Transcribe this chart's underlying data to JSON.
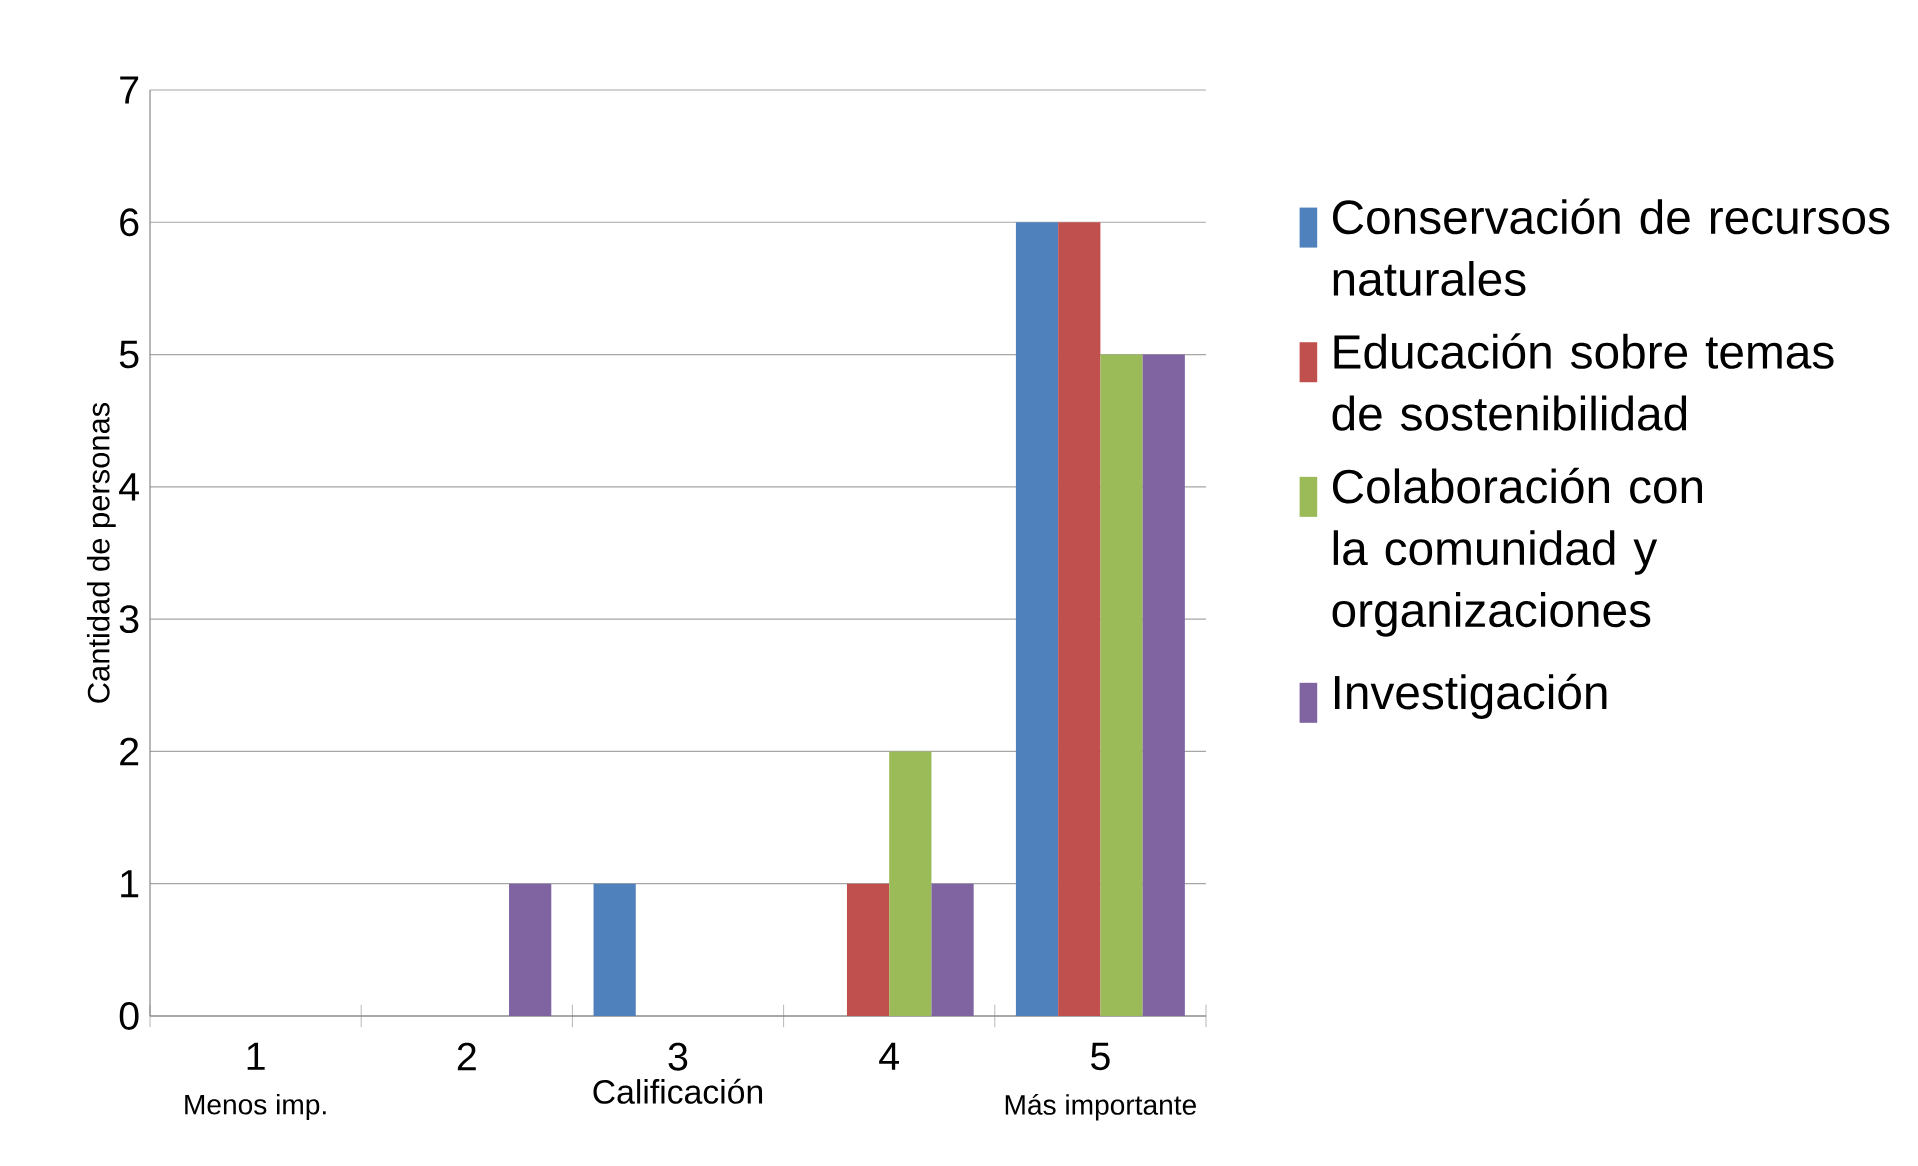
{
  "chart_data": {
    "type": "bar",
    "xlabel": "Calificación",
    "ylabel": "Cantidad de personas",
    "categories": [
      "1",
      "2",
      "3",
      "4",
      "5"
    ],
    "series": [
      {
        "name": "Conservación de recursos naturales",
        "color": "#4f81bd",
        "values": [
          0,
          0,
          1,
          0,
          6
        ]
      },
      {
        "name": "Educación sobre temas de sostenibilidad",
        "color": "#c0504d",
        "values": [
          0,
          0,
          0,
          1,
          6
        ]
      },
      {
        "name": "Colaboración con la comunidad y organizaciones",
        "color": "#9bbb59",
        "values": [
          0,
          0,
          0,
          2,
          5
        ]
      },
      {
        "name": "Investigación",
        "color": "#8064a2",
        "values": [
          0,
          1,
          0,
          1,
          5
        ]
      }
    ],
    "ylim": [
      0,
      7
    ],
    "yticks": [
      0,
      1,
      2,
      3,
      4,
      5,
      6,
      7
    ],
    "grid": "y",
    "legend": "right",
    "annotations": [
      "Menos imp.",
      "Más importante"
    ]
  }
}
